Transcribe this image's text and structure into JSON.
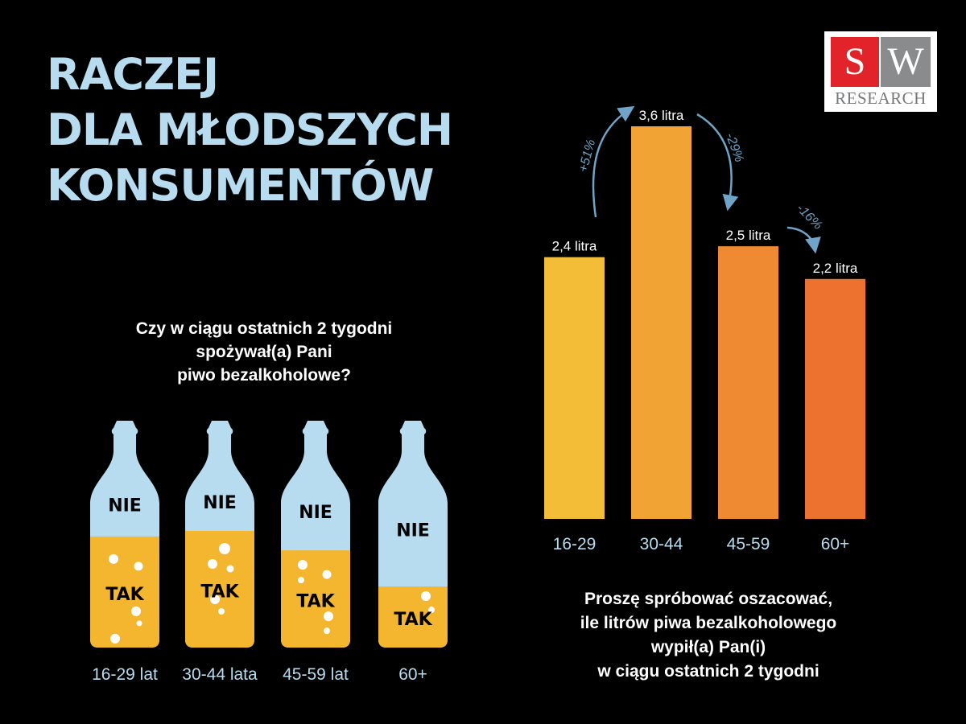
{
  "title": [
    "RACZEJ",
    "DLA MŁODSZYCH",
    "KONSUMENTÓW"
  ],
  "logo": {
    "s": "S",
    "w": "W",
    "research": "RESEARCH"
  },
  "colors": {
    "title": "#b7dbef",
    "bottle_empty": "#b7dbef",
    "bottle_fill": "#f3b62e",
    "bar_scale": [
      "#f3bd38",
      "#f1a334",
      "#ef8a32",
      "#ed7230"
    ],
    "arrow": "#6fa3c7",
    "bubble": "#ffffff"
  },
  "left_question": "Czy w ciągu ostatnich 2 tygodni\nspożywał(a) Pani\npiwo bezalkoholowe?",
  "right_question": "Proszę spróbować oszacować,\nile litrów piwa bezalkoholowego\nwypił(a) Pan(i)\nw ciągu ostatnich 2 tygodni",
  "chart_data": [
    {
      "type": "bar",
      "categories": [
        "16-29 lat",
        "30-44 lata",
        "45-59 lat",
        "60+"
      ],
      "series": [
        {
          "name": "TAK",
          "values": [
            0.4,
            0.42,
            0.35,
            0.22
          ]
        },
        {
          "name": "NIE",
          "values": [
            0.6,
            0.58,
            0.65,
            0.78
          ]
        }
      ],
      "stacked": true
    },
    {
      "type": "bar",
      "categories": [
        "16-29",
        "30-44",
        "45-59",
        "60+"
      ],
      "values": [
        2.4,
        3.6,
        2.5,
        2.2
      ],
      "data_labels": [
        "2,4 litra",
        "3,6 litra",
        "2,5 litra",
        "2,2 litra"
      ],
      "changes": [
        "+51%",
        "-29%",
        "-16%"
      ]
    }
  ]
}
